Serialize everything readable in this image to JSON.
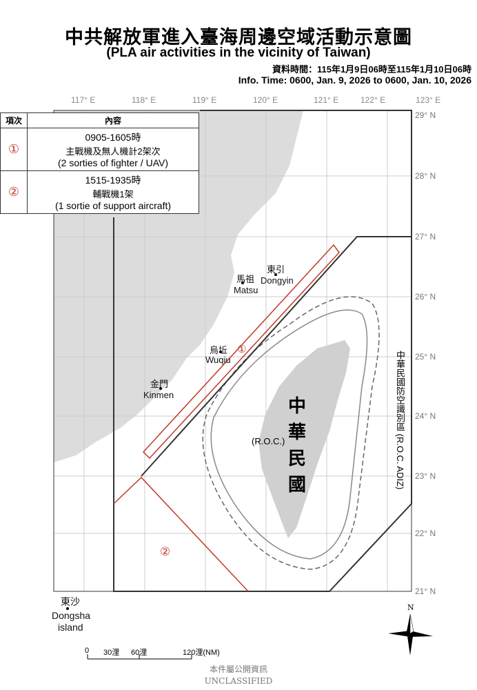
{
  "title": "中共解放軍進入臺海周邊空域活動示意圖",
  "subtitle": "(PLA air activities in the vicinity of Taiwan)",
  "info_time_zh": "資料時間：115年1月9日06時至115年1月10日06時",
  "info_time_en": "Info. Time: 0600, Jan. 9, 2026 to 0600, Jan. 10, 2026",
  "longitudes": [
    "117° E",
    "118° E",
    "119° E",
    "120° E",
    "121° E",
    "122° E",
    "123° E"
  ],
  "latitudes": [
    "29° N",
    "28° N",
    "27° N",
    "26° N",
    "25° N",
    "24° N",
    "23° N",
    "22° N",
    "21° N"
  ],
  "legend": {
    "headers": [
      "項次",
      "內容"
    ],
    "rows": [
      {
        "marker": "①",
        "time": "0905-1605時",
        "zh": "主戰機及無人機計2架次",
        "en": "(2 sorties of fighter / UAV)"
      },
      {
        "marker": "②",
        "time": "1515-1935時",
        "zh": "輔戰機1架",
        "en": "(1 sortie of support aircraft)"
      }
    ]
  },
  "places": {
    "dongyin_zh": "東引",
    "dongyin_en": "Dongyin",
    "matsu_zh": "馬祖",
    "matsu_en": "Matsu",
    "wuqiu_zh": "烏坵",
    "wuqiu_en": "Wuqiu",
    "kinmen_zh": "金門",
    "kinmen_en": "Kinmen",
    "dongsha_zh": "東沙",
    "dongsha_en1": "Dongsha",
    "dongsha_en2": "island",
    "roc_zh": "中華民國",
    "roc_en": "(R.O.C.)",
    "adiz": "中華民國防空識別區 (R.O.C. ADIZ)"
  },
  "zone_markers": [
    "①",
    "②"
  ],
  "scale": {
    "labels": [
      "0",
      "30浬",
      "60浬",
      "120浬(NM)"
    ]
  },
  "north": "N",
  "classification_zh": "本件屬公開資訊",
  "classification_en": "UNCLASSIFIED",
  "colors": {
    "land": "#dcdcdc",
    "activity": "#c0392b",
    "adiz": "#333333"
  }
}
